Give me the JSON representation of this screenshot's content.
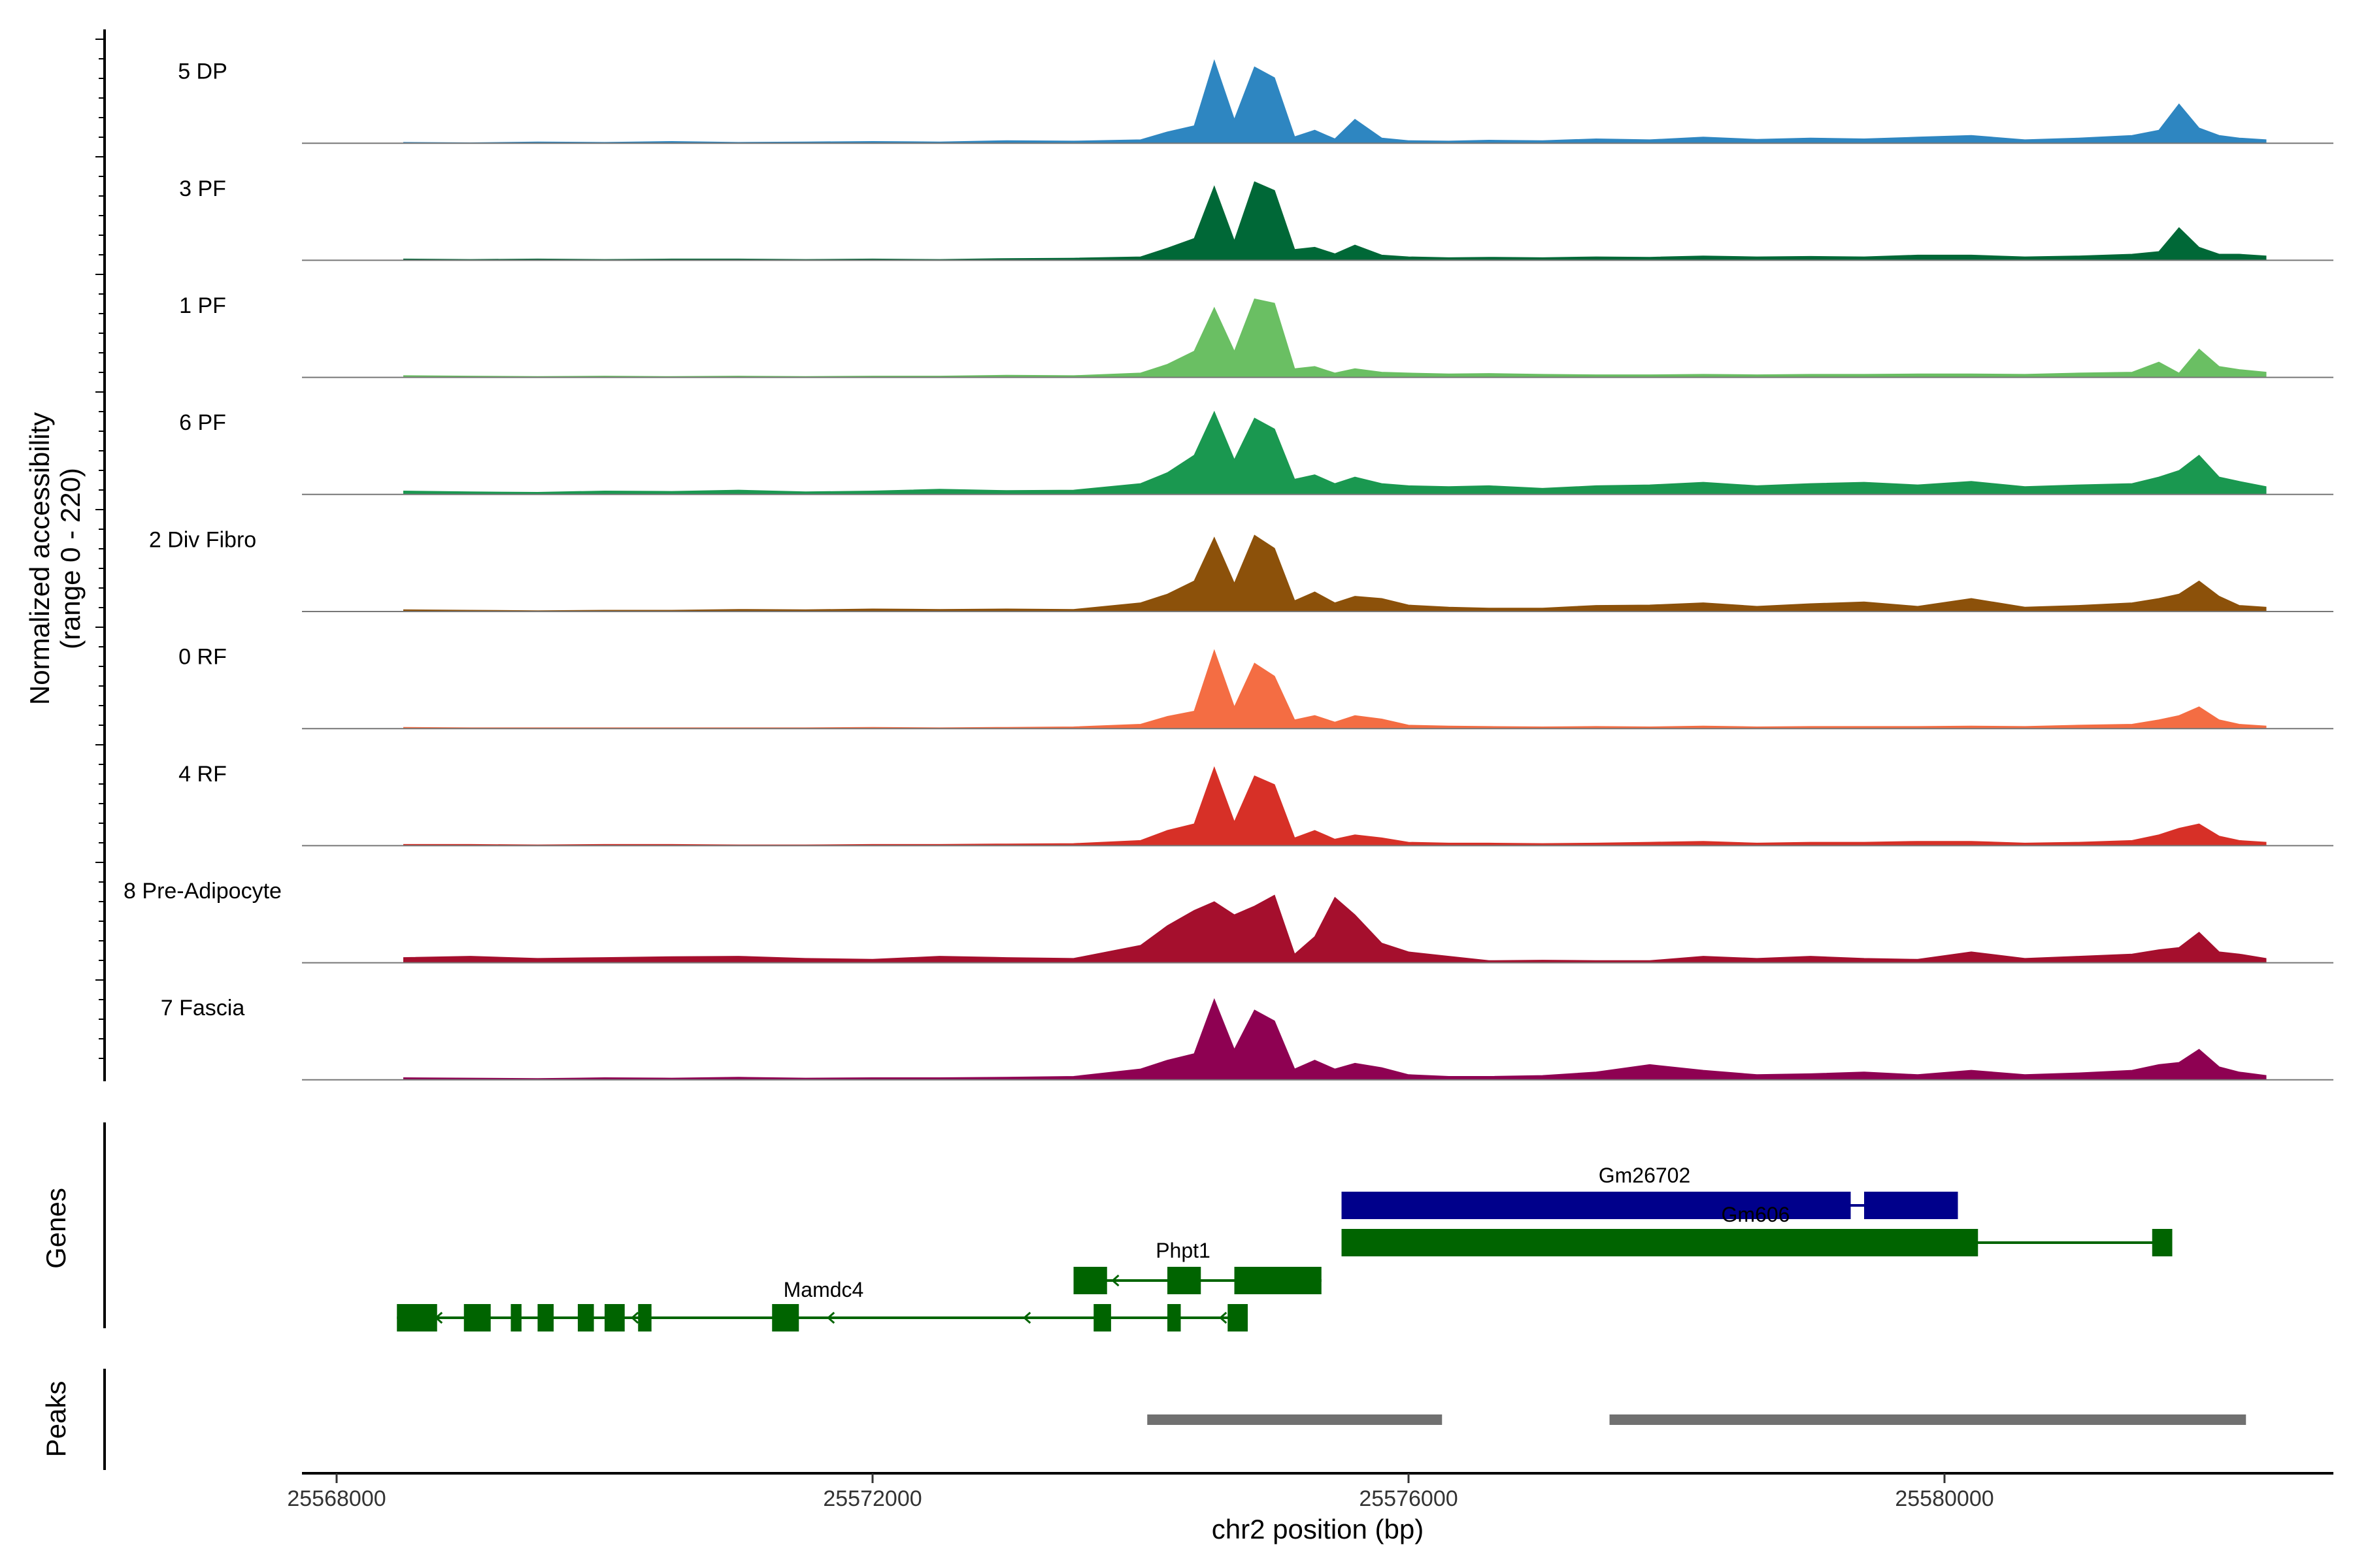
{
  "chart_data": {
    "type": "area",
    "title": "",
    "xlabel": "chr2 position (bp)",
    "ylabel": "Normalized accessibility",
    "ylabel_range": "(range 0 - 220)",
    "ylim": [
      0,
      220
    ],
    "xlim": [
      25567750,
      25582900
    ],
    "x_ticks": [
      25568000,
      25572000,
      25576000,
      25580000
    ],
    "x_tick_labels": [
      "25568000",
      "25572000",
      "25576000",
      "25580000"
    ],
    "x": [
      25568500,
      25569000,
      25569500,
      25570000,
      25570500,
      25571000,
      25571500,
      25572000,
      25572500,
      25573000,
      25573500,
      25574000,
      25574200,
      25574400,
      25574550,
      25574700,
      25574850,
      25575000,
      25575150,
      25575300,
      25575450,
      25575600,
      25575800,
      25576000,
      25576300,
      25576600,
      25577000,
      25577400,
      25577800,
      25578200,
      25578600,
      25579000,
      25579400,
      25579800,
      25580200,
      25580600,
      25581000,
      25581400,
      25581600,
      25581750,
      25581900,
      25582050,
      25582200,
      25582400
    ],
    "series": [
      {
        "name": "5 DP",
        "color": "#2E86C1",
        "values": [
          2,
          1,
          3,
          2,
          4,
          2,
          3,
          4,
          3,
          6,
          5,
          8,
          26,
          40,
          190,
          55,
          175,
          150,
          15,
          30,
          10,
          55,
          12,
          6,
          5,
          7,
          6,
          10,
          8,
          14,
          9,
          12,
          10,
          14,
          18,
          8,
          12,
          18,
          30,
          90,
          35,
          18,
          12,
          8
        ]
      },
      {
        "name": "3 PF",
        "color": "#006837",
        "values": [
          3,
          2,
          3,
          2,
          3,
          3,
          2,
          3,
          2,
          4,
          5,
          8,
          28,
          50,
          170,
          45,
          180,
          160,
          25,
          30,
          15,
          35,
          12,
          8,
          6,
          7,
          6,
          8,
          7,
          10,
          8,
          9,
          8,
          12,
          12,
          8,
          10,
          14,
          20,
          75,
          30,
          14,
          14,
          10
        ]
      },
      {
        "name": "1 PF",
        "color": "#6ABF63",
        "values": [
          4,
          3,
          2,
          3,
          2,
          3,
          2,
          3,
          3,
          5,
          4,
          10,
          30,
          60,
          160,
          60,
          180,
          170,
          20,
          25,
          10,
          20,
          12,
          10,
          8,
          9,
          7,
          6,
          6,
          7,
          6,
          7,
          7,
          8,
          8,
          7,
          10,
          12,
          35,
          10,
          65,
          25,
          18,
          12
        ]
      },
      {
        "name": "6 PF",
        "color": "#1A9850",
        "values": [
          8,
          6,
          5,
          8,
          7,
          10,
          6,
          8,
          12,
          9,
          10,
          25,
          50,
          90,
          190,
          80,
          175,
          150,
          35,
          45,
          25,
          40,
          25,
          20,
          18,
          20,
          14,
          20,
          22,
          28,
          20,
          25,
          28,
          22,
          30,
          18,
          22,
          25,
          40,
          55,
          90,
          40,
          30,
          18
        ]
      },
      {
        "name": "2 Div Fibro",
        "color": "#8C510A",
        "values": [
          4,
          3,
          2,
          3,
          3,
          5,
          4,
          6,
          5,
          6,
          5,
          20,
          40,
          70,
          170,
          65,
          175,
          145,
          25,
          45,
          20,
          35,
          30,
          15,
          10,
          8,
          8,
          14,
          15,
          20,
          12,
          18,
          22,
          12,
          30,
          10,
          14,
          20,
          30,
          40,
          70,
          35,
          14,
          10
        ]
      },
      {
        "name": "0 RF",
        "color": "#F46D43",
        "values": [
          3,
          2,
          2,
          2,
          2,
          2,
          2,
          3,
          2,
          3,
          4,
          10,
          28,
          40,
          180,
          50,
          150,
          120,
          20,
          30,
          15,
          30,
          22,
          8,
          6,
          5,
          4,
          5,
          4,
          6,
          4,
          5,
          5,
          5,
          6,
          5,
          8,
          10,
          20,
          30,
          50,
          20,
          10,
          6
        ]
      },
      {
        "name": "4 RF",
        "color": "#D73027",
        "values": [
          3,
          3,
          2,
          3,
          3,
          2,
          2,
          3,
          3,
          4,
          5,
          12,
          35,
          50,
          180,
          55,
          160,
          140,
          18,
          35,
          15,
          25,
          18,
          8,
          6,
          6,
          5,
          6,
          8,
          10,
          6,
          8,
          8,
          10,
          10,
          6,
          8,
          12,
          25,
          40,
          50,
          22,
          12,
          8
        ]
      },
      {
        "name": "8 Pre-Adipocyte",
        "color": "#A50F2D",
        "values": [
          12,
          15,
          10,
          12,
          14,
          15,
          10,
          8,
          15,
          12,
          10,
          40,
          85,
          120,
          140,
          110,
          130,
          155,
          20,
          60,
          150,
          110,
          45,
          25,
          15,
          5,
          6,
          5,
          5,
          15,
          10,
          15,
          10,
          8,
          25,
          10,
          15,
          20,
          30,
          35,
          70,
          25,
          20,
          10
        ]
      },
      {
        "name": "7 Fascia",
        "color": "#8E0152",
        "values": [
          5,
          4,
          3,
          5,
          4,
          6,
          4,
          5,
          5,
          6,
          8,
          25,
          45,
          60,
          185,
          70,
          160,
          135,
          25,
          45,
          25,
          38,
          28,
          12,
          8,
          8,
          10,
          18,
          35,
          22,
          12,
          14,
          18,
          12,
          22,
          12,
          16,
          22,
          35,
          40,
          70,
          30,
          18,
          10
        ]
      }
    ],
    "genes": [
      {
        "name": "Gm26702",
        "color": "#00008B",
        "start": 25575500,
        "end": 25580100,
        "exons": [
          [
            25575500,
            25579300
          ],
          [
            25579400,
            25580100
          ]
        ]
      },
      {
        "name": "Gm606",
        "color": "#006400",
        "start": 25575500,
        "end": 25581700,
        "exons": [
          [
            25575500,
            25580250
          ],
          [
            25581550,
            25581700
          ]
        ]
      },
      {
        "name": "Phpt1",
        "color": "#006400",
        "start": 25573500,
        "end": 25575350,
        "exons": [
          [
            25573500,
            25573750
          ],
          [
            25574200,
            25574450
          ],
          [
            25574700,
            25575350
          ]
        ]
      },
      {
        "name": "Mamdc4",
        "color": "#006400",
        "start": 25568450,
        "end": 25574800,
        "exons": [
          [
            25568450,
            25568750
          ],
          [
            25568950,
            25569150
          ],
          [
            25569300,
            25569380
          ],
          [
            25569500,
            25569620
          ],
          [
            25569800,
            25569920
          ],
          [
            25570000,
            25570150
          ],
          [
            25570250,
            25570350
          ],
          [
            25571250,
            25571450
          ],
          [
            25573650,
            25573780
          ],
          [
            25574200,
            25574300
          ],
          [
            25574650,
            25574800
          ]
        ]
      }
    ],
    "peaks": [
      [
        25574050,
        25576250
      ],
      [
        25577500,
        25582250
      ]
    ]
  },
  "panels": {
    "genes_label": "Genes",
    "peaks_label": "Peaks"
  }
}
